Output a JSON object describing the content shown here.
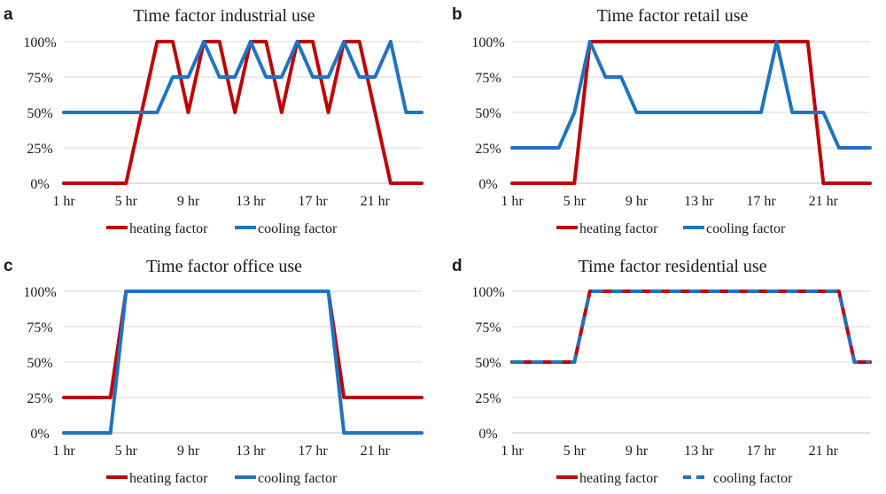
{
  "colors": {
    "heating": "#c00000",
    "cooling": "#1f73c1",
    "grid": "#d9d9d9",
    "axis": "#bfbfbf"
  },
  "legend": {
    "heating": "heating factor",
    "cooling": "cooling factor"
  },
  "chart_data": [
    {
      "type": "line",
      "panel": "a",
      "title": "Time factor industrial use",
      "x": [
        1,
        2,
        3,
        4,
        5,
        6,
        7,
        8,
        9,
        10,
        11,
        12,
        13,
        14,
        15,
        16,
        17,
        18,
        19,
        20,
        21,
        22,
        23,
        24
      ],
      "x_ticks": [
        "1 hr",
        "5 hr",
        "9 hr",
        "13 hr",
        "17 hr",
        "21 hr"
      ],
      "y_ticks": [
        "0%",
        "25%",
        "50%",
        "75%",
        "100%"
      ],
      "ylim": [
        0,
        100
      ],
      "legend_position": "bottom",
      "series": [
        {
          "name": "heating factor",
          "values": [
            0,
            0,
            0,
            0,
            0,
            50,
            100,
            100,
            50,
            100,
            100,
            50,
            100,
            100,
            50,
            100,
            100,
            50,
            100,
            100,
            50,
            0,
            0,
            0
          ]
        },
        {
          "name": "cooling factor",
          "values": [
            50,
            50,
            50,
            50,
            50,
            50,
            50,
            75,
            75,
            100,
            75,
            75,
            100,
            75,
            75,
            100,
            75,
            75,
            100,
            75,
            75,
            100,
            50,
            50
          ]
        }
      ]
    },
    {
      "type": "line",
      "panel": "b",
      "title": "Time factor retail use",
      "x": [
        1,
        2,
        3,
        4,
        5,
        6,
        7,
        8,
        9,
        10,
        11,
        12,
        13,
        14,
        15,
        16,
        17,
        18,
        19,
        20,
        21,
        22,
        23,
        24
      ],
      "x_ticks": [
        "1 hr",
        "5 hr",
        "9 hr",
        "13 hr",
        "17 hr",
        "21 hr"
      ],
      "y_ticks": [
        "0%",
        "25%",
        "50%",
        "75%",
        "100%"
      ],
      "ylim": [
        0,
        100
      ],
      "legend_position": "bottom",
      "series": [
        {
          "name": "heating factor",
          "values": [
            0,
            0,
            0,
            0,
            0,
            100,
            100,
            100,
            100,
            100,
            100,
            100,
            100,
            100,
            100,
            100,
            100,
            100,
            100,
            100,
            0,
            0,
            0,
            0
          ]
        },
        {
          "name": "cooling factor",
          "values": [
            25,
            25,
            25,
            25,
            50,
            100,
            75,
            75,
            50,
            50,
            50,
            50,
            50,
            50,
            50,
            50,
            50,
            100,
            50,
            50,
            50,
            25,
            25,
            25
          ]
        }
      ]
    },
    {
      "type": "line",
      "panel": "c",
      "title": "Time factor office use",
      "x": [
        1,
        2,
        3,
        4,
        5,
        6,
        7,
        8,
        9,
        10,
        11,
        12,
        13,
        14,
        15,
        16,
        17,
        18,
        19,
        20,
        21,
        22,
        23,
        24
      ],
      "x_ticks": [
        "1 hr",
        "5 hr",
        "9 hr",
        "13 hr",
        "17 hr",
        "21 hr"
      ],
      "y_ticks": [
        "0%",
        "25%",
        "50%",
        "75%",
        "100%"
      ],
      "ylim": [
        0,
        100
      ],
      "legend_position": "bottom",
      "series": [
        {
          "name": "heating factor",
          "values": [
            25,
            25,
            25,
            25,
            100,
            100,
            100,
            100,
            100,
            100,
            100,
            100,
            100,
            100,
            100,
            100,
            100,
            100,
            25,
            25,
            25,
            25,
            25,
            25
          ]
        },
        {
          "name": "cooling factor",
          "values": [
            0,
            0,
            0,
            0,
            100,
            100,
            100,
            100,
            100,
            100,
            100,
            100,
            100,
            100,
            100,
            100,
            100,
            100,
            0,
            0,
            0,
            0,
            0,
            0
          ]
        }
      ]
    },
    {
      "type": "line",
      "panel": "d",
      "title": "Time factor residential use",
      "x": [
        1,
        2,
        3,
        4,
        5,
        6,
        7,
        8,
        9,
        10,
        11,
        12,
        13,
        14,
        15,
        16,
        17,
        18,
        19,
        20,
        21,
        22,
        23,
        24
      ],
      "x_ticks": [
        "1 hr",
        "5 hr",
        "9 hr",
        "13 hr",
        "17 hr",
        "21 hr"
      ],
      "y_ticks": [
        "0%",
        "25%",
        "50%",
        "75%",
        "100%"
      ],
      "ylim": [
        0,
        100
      ],
      "legend_position": "bottom",
      "series": [
        {
          "name": "heating factor",
          "values": [
            50,
            50,
            50,
            50,
            50,
            100,
            100,
            100,
            100,
            100,
            100,
            100,
            100,
            100,
            100,
            100,
            100,
            100,
            100,
            100,
            100,
            100,
            50,
            50
          ]
        },
        {
          "name": "cooling factor",
          "values": [
            50,
            50,
            50,
            50,
            50,
            100,
            100,
            100,
            100,
            100,
            100,
            100,
            100,
            100,
            100,
            100,
            100,
            100,
            100,
            100,
            100,
            100,
            50,
            50
          ],
          "dashed": true
        }
      ]
    }
  ]
}
